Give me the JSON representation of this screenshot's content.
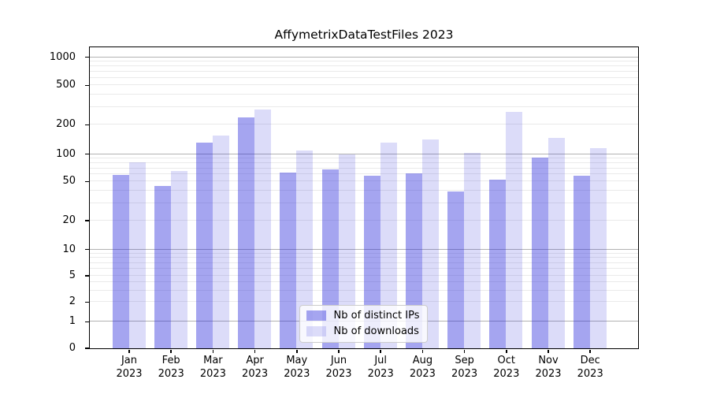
{
  "chart_data": {
    "type": "bar",
    "title": "AffymetrixDataTestFiles 2023",
    "categories": [
      "Jan 2023",
      "Feb 2023",
      "Mar 2023",
      "Apr 2023",
      "May 2023",
      "Jun 2023",
      "Jul 2023",
      "Aug 2023",
      "Sep 2023",
      "Oct 2023",
      "Nov 2023",
      "Dec 2023"
    ],
    "series": [
      {
        "name": "Nb of distinct IPs",
        "color": "rgba(40,40,220,0.42)",
        "color_on_white_hex": "#a5a5f0",
        "values": [
          58,
          45,
          130,
          235,
          62,
          67,
          57,
          61,
          39,
          52,
          90,
          57
        ]
      },
      {
        "name": "Nb of downloads",
        "color": "rgba(40,40,220,0.16)",
        "color_on_white_hex": "#dcdcf9",
        "values": [
          80,
          65,
          155,
          280,
          108,
          98,
          130,
          140,
          102,
          265,
          145,
          115
        ]
      }
    ],
    "xlabel": "",
    "ylabel": "",
    "yscale": "symlog",
    "y_ticks": [
      0,
      1,
      2,
      5,
      10,
      20,
      50,
      100,
      200,
      500,
      1000
    ],
    "y_minor_grid_values": [
      2,
      3,
      4,
      5,
      6,
      7,
      8,
      9,
      20,
      30,
      40,
      50,
      60,
      70,
      80,
      90,
      200,
      300,
      400,
      500,
      600,
      700,
      800,
      900
    ],
    "y_major_grid_values": [
      1,
      10,
      100,
      1000
    ],
    "ylim": [
      0,
      1280
    ],
    "grid": "both",
    "legend_position": "lower center",
    "colors": {
      "major_grid": "#b2b2b2",
      "minor_grid": "#eaeaea",
      "spine": "#000000",
      "text": "#000000"
    }
  }
}
